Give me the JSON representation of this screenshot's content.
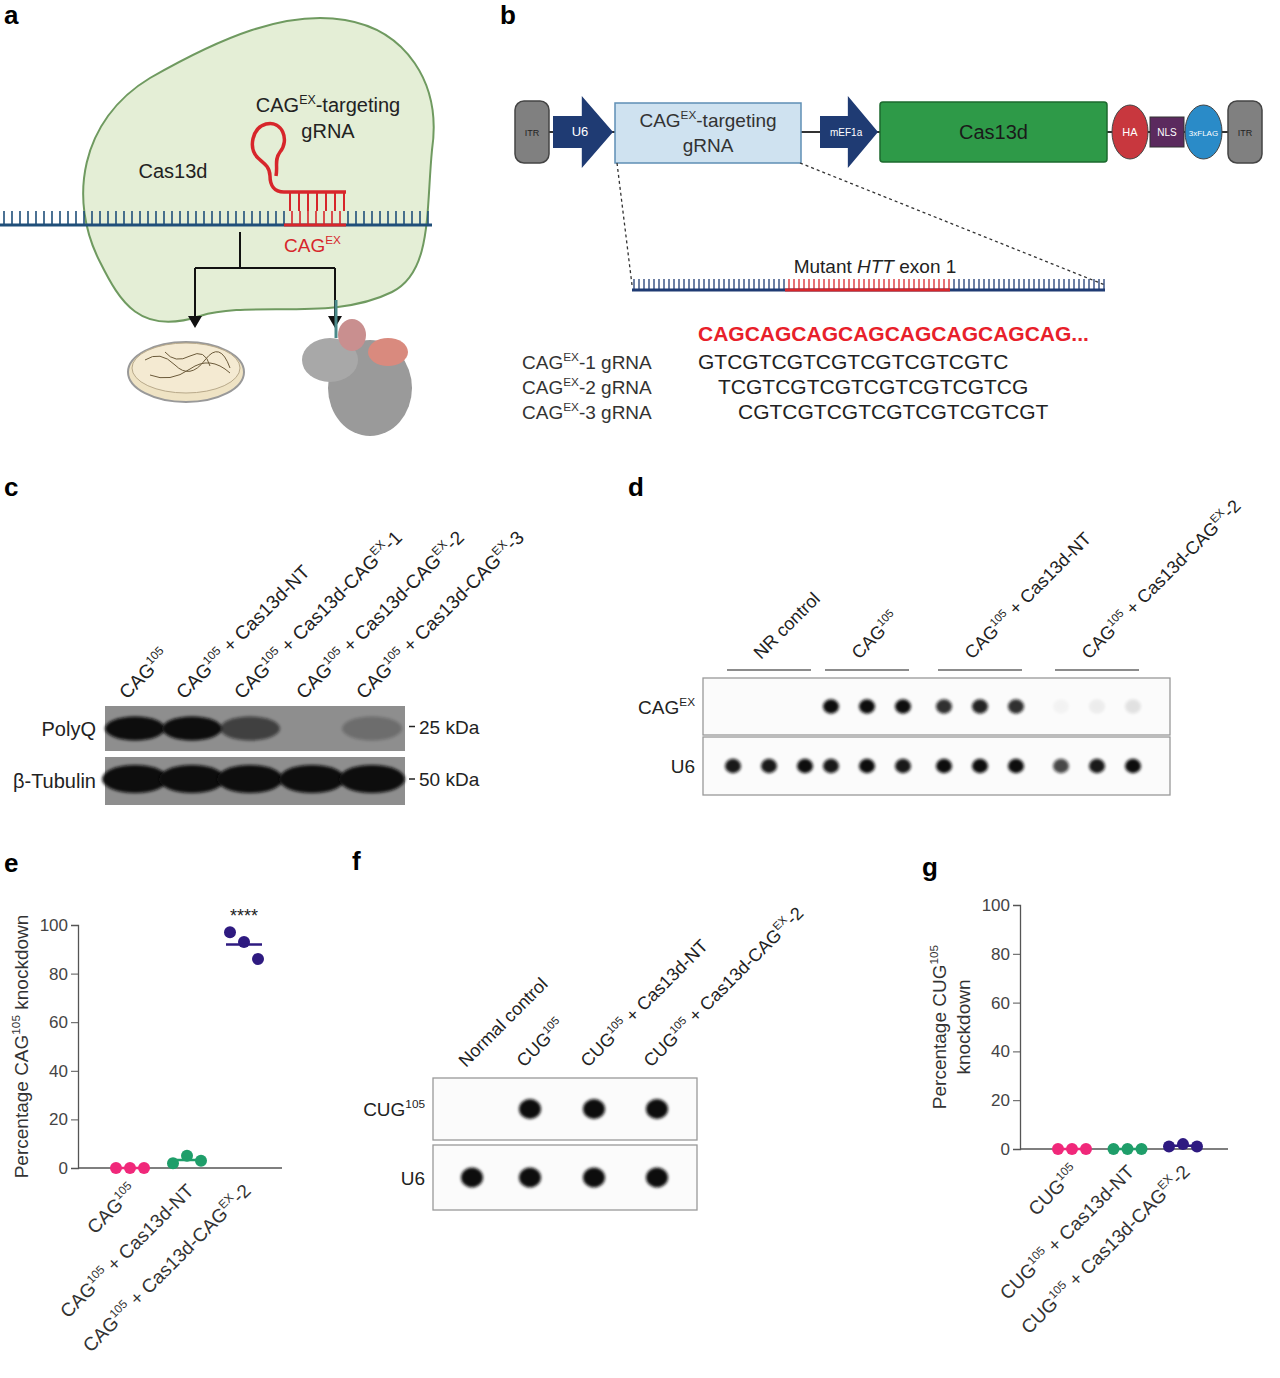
{
  "panel_a": {
    "letter": "a",
    "enzyme": "Cas13d",
    "guide_lines": [
      [
        "CAG",
        "EX",
        "-targeting"
      ],
      [
        "gRNA"
      ]
    ],
    "target": [
      "CAG",
      "EX"
    ]
  },
  "panel_b": {
    "letter": "b",
    "elements": [
      {
        "label": "ITR",
        "kind": "itr",
        "color": "#808080"
      },
      {
        "label": "U6",
        "kind": "promoter",
        "color": "#1f3b73"
      },
      {
        "label_lines": [
          [
            "CAG",
            "EX",
            "-targeting"
          ],
          [
            "gRNA"
          ]
        ],
        "kind": "guide",
        "color": "#cfe2f0"
      },
      {
        "label": "mEF1a",
        "kind": "promoter",
        "color": "#1f3b73"
      },
      {
        "label": "Cas13d",
        "kind": "gene",
        "color": "#2e9a48"
      },
      {
        "label": "HA",
        "kind": "tag",
        "color": "#c8373e"
      },
      {
        "label": "NLS",
        "kind": "linker",
        "color": "#5b2a5e"
      },
      {
        "label": "3xFLAG",
        "kind": "tag",
        "color": "#2a8bc8"
      },
      {
        "label": "ITR",
        "kind": "itr",
        "color": "#808080"
      }
    ],
    "region_label": {
      "before": "Mutant ",
      "italic": "HTT",
      "after": " exon 1"
    },
    "target_sequence": "CAGCAGCAGCAGCAGCAGCAGCAG...",
    "guides": [
      {
        "label": [
          "CAG",
          "EX",
          "-1 gRNA"
        ],
        "sequence": "GTCGTCGTCGTCGTCGTCGTC"
      },
      {
        "label": [
          "CAG",
          "EX",
          "-2 gRNA"
        ],
        "sequence": "TCGTCGTCGTCGTCGTCGTCG"
      },
      {
        "label": [
          "CAG",
          "EX",
          "-3 gRNA"
        ],
        "sequence": "CGTCGTCGTCGTCGTCGTCGT"
      }
    ]
  },
  "panel_c": {
    "letter": "c",
    "lanes": [
      [
        "CAG",
        "105"
      ],
      [
        "CAG",
        "105",
        " + Cas13d-NT"
      ],
      [
        "CAG",
        "105",
        " + Cas13d-CAG",
        "EX",
        "-1"
      ],
      [
        "CAG",
        "105",
        " + Cas13d-CAG",
        "EX",
        "-2"
      ],
      [
        "CAG",
        "105",
        " + Cas13d-CAG",
        "EX",
        "-3"
      ]
    ],
    "rows": [
      {
        "label": "PolyQ",
        "ladder": "25 kDa",
        "intensity": [
          1,
          1,
          0.6,
          0,
          0.25
        ]
      },
      {
        "label": "β-Tubulin",
        "ladder": "50 kDa",
        "intensity": [
          1,
          1,
          1,
          1,
          1
        ]
      }
    ]
  },
  "panel_d": {
    "letter": "d",
    "groups": [
      [
        "NR control"
      ],
      [
        "CAG",
        "105"
      ],
      [
        "CAG",
        "105",
        " + Cas13d-NT"
      ],
      [
        "CAG",
        "105",
        " + Cas13d-CAG",
        "EX",
        "-2"
      ]
    ],
    "rows": [
      {
        "label": [
          "CAG",
          "EX"
        ],
        "intensity": [
          [
            0,
            0,
            0
          ],
          [
            1,
            1,
            1
          ],
          [
            0.85,
            0.9,
            0.85
          ],
          [
            0.03,
            0.06,
            0.1
          ]
        ]
      },
      {
        "label": [
          "U6"
        ],
        "intensity": [
          [
            0.95,
            0.95,
            1
          ],
          [
            0.95,
            1,
            0.95
          ],
          [
            1,
            1,
            1
          ],
          [
            0.75,
            0.95,
            1
          ]
        ]
      }
    ]
  },
  "panel_f": {
    "letter": "f",
    "groups": [
      [
        "Normal control"
      ],
      [
        "CUG",
        "105"
      ],
      [
        "CUG",
        "105",
        " + Cas13d-NT"
      ],
      [
        "CUG",
        "105",
        " + Cas13d-CAG",
        "EX",
        "-2"
      ]
    ],
    "rows": [
      {
        "label": [
          "CUG",
          "105"
        ],
        "intensity": [
          0,
          1,
          1,
          1
        ]
      },
      {
        "label": [
          "U6"
        ],
        "intensity": [
          1,
          1,
          1,
          1
        ]
      }
    ]
  },
  "chart_data": [
    {
      "type": "scatter",
      "panel": "e",
      "y_label": [
        [
          "Percentage CAG",
          "105",
          " knockdown"
        ]
      ],
      "categories": [
        [
          "CAG",
          "105"
        ],
        [
          "CAG",
          "105",
          " + Cas13d-NT"
        ],
        [
          "CAG",
          "105",
          " + Cas13d-CAG",
          "EX",
          "-2"
        ]
      ],
      "values": [
        [
          0,
          0,
          0
        ],
        [
          2,
          5,
          3
        ],
        [
          97,
          93,
          86
        ]
      ],
      "means": [
        0,
        3.3,
        92
      ],
      "colors": [
        "#f0287a",
        "#1f9e6a",
        "#2e1a80"
      ],
      "significance": [
        null,
        null,
        "****"
      ],
      "ylim": [
        0,
        100
      ],
      "yticks": [
        0,
        20,
        40,
        60,
        80,
        100
      ]
    },
    {
      "type": "scatter",
      "panel": "g",
      "y_label": [
        [
          "Percentage CUG",
          "105"
        ],
        [
          "knockdown"
        ]
      ],
      "categories": [
        [
          "CUG",
          "105"
        ],
        [
          "CUG",
          "105",
          " + Cas13d-NT"
        ],
        [
          "CUG",
          "105",
          " + Cas13d-CAG",
          "EX",
          "-2"
        ]
      ],
      "values": [
        [
          0,
          0,
          0
        ],
        [
          0,
          0,
          0
        ],
        [
          1,
          2,
          1
        ]
      ],
      "means": [
        0,
        0,
        1.3
      ],
      "colors": [
        "#f0287a",
        "#1f9e6a",
        "#2e1a80"
      ],
      "significance": [
        null,
        null,
        null
      ],
      "ylim": [
        0,
        100
      ],
      "yticks": [
        0,
        20,
        40,
        60,
        80,
        100
      ]
    }
  ]
}
